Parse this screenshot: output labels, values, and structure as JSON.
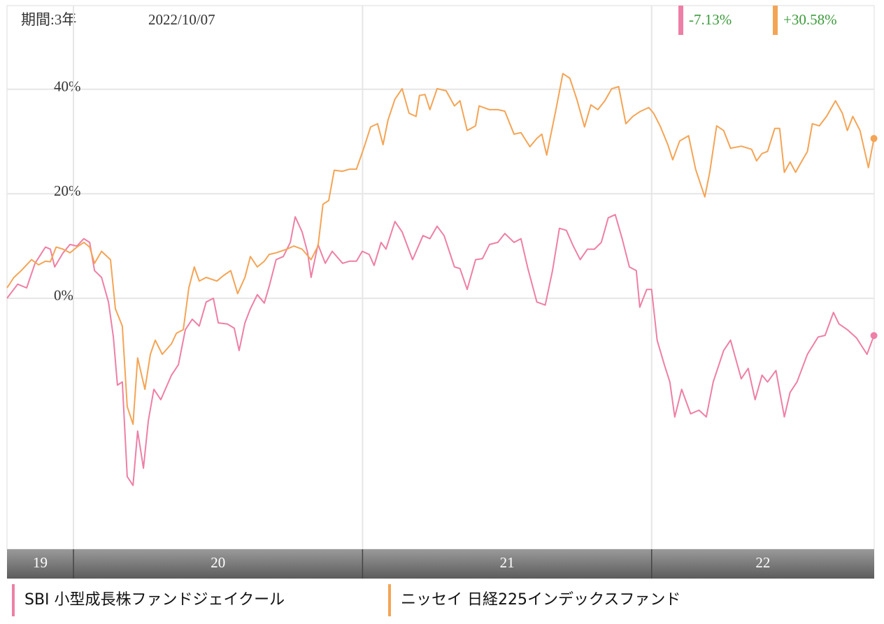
{
  "chart_data": {
    "type": "line",
    "period": "期間:3年",
    "date": "2022/10/07",
    "xlim": [
      2019.77,
      2022.77
    ],
    "xticks": [
      2020,
      2021,
      2022
    ],
    "year_labels": [
      "19",
      "20",
      "21",
      "22"
    ],
    "ylim": [
      -48,
      56
    ],
    "yticks": [
      {
        "value": 0,
        "label": "0%"
      },
      {
        "value": 20,
        "label": "20%"
      },
      {
        "value": 40,
        "label": "40%"
      }
    ],
    "grid": true,
    "series": [
      {
        "name": "SBI 小型成長株ファンドジェイクール",
        "color": "#ee7fa6",
        "last_label": "-7.13%",
        "x": [
          2019.77,
          2019.807,
          2019.838,
          2019.867,
          2019.903,
          2019.92,
          2019.935,
          2019.964,
          2019.988,
          2020.012,
          2020.036,
          2020.056,
          2020.073,
          2020.097,
          2020.121,
          2020.138,
          2020.152,
          2020.169,
          2020.186,
          2020.206,
          2020.222,
          2020.242,
          2020.259,
          2020.278,
          2020.302,
          2020.339,
          2020.363,
          2020.387,
          2020.411,
          2020.435,
          2020.459,
          2020.484,
          2020.501,
          2020.532,
          2020.556,
          2020.573,
          2020.593,
          2020.612,
          2020.636,
          2020.66,
          2020.677,
          2020.701,
          2020.726,
          2020.75,
          2020.767,
          2020.791,
          2020.81,
          2020.822,
          2020.846,
          2020.871,
          2020.895,
          2020.931,
          2020.955,
          2020.979,
          2020.999,
          2021.023,
          2021.04,
          2021.064,
          2021.081,
          2021.112,
          2021.137,
          2021.173,
          2021.209,
          2021.233,
          2021.258,
          2021.282,
          2021.318,
          2021.337,
          2021.362,
          2021.391,
          2021.415,
          2021.439,
          2021.468,
          2021.492,
          2021.524,
          2021.548,
          2021.572,
          2021.603,
          2021.632,
          2021.657,
          2021.681,
          2021.705,
          2021.729,
          2021.753,
          2021.778,
          2021.802,
          2021.826,
          2021.85,
          2021.874,
          2021.898,
          2021.923,
          2021.947,
          2021.959,
          2021.983,
          2022.0,
          2022.019,
          2022.044,
          2022.063,
          2022.08,
          2022.104,
          2022.135,
          2022.164,
          2022.189,
          2022.213,
          2022.249,
          2022.273,
          2022.31,
          2022.334,
          2022.358,
          2022.382,
          2022.401,
          2022.43,
          2022.459,
          2022.479,
          2022.503,
          2022.539,
          2022.576,
          2022.6,
          2022.629,
          2022.648,
          2022.677,
          2022.709,
          2022.745,
          2022.769
        ],
        "values": [
          0,
          2.7,
          2.0,
          6.7,
          9.8,
          9.4,
          6.0,
          8.7,
          10.3,
          10.0,
          11.4,
          10.7,
          5.3,
          4.0,
          -0.7,
          -7.4,
          -16.6,
          -16.0,
          -34.1,
          -35.8,
          -25.4,
          -32.5,
          -23.4,
          -17.4,
          -19.4,
          -14.7,
          -12.7,
          -6.0,
          -4.0,
          -5.3,
          -0.7,
          0,
          -4.7,
          -4.9,
          -5.7,
          -10.0,
          -4.7,
          -2.0,
          0.7,
          -0.9,
          2.3,
          7.4,
          8.0,
          10.7,
          15.6,
          12.7,
          8.7,
          4.0,
          10.3,
          6.7,
          9.0,
          6.7,
          7.1,
          7.1,
          9.0,
          8.4,
          6.3,
          10.7,
          9.4,
          14.7,
          12.7,
          7.4,
          12.0,
          11.4,
          13.8,
          12.0,
          6.0,
          5.7,
          1.7,
          7.4,
          7.6,
          10.3,
          10.7,
          12.4,
          10.7,
          11.4,
          5.7,
          -0.7,
          -1.3,
          5.3,
          13.4,
          13.0,
          10.0,
          7.4,
          9.4,
          9.4,
          10.7,
          15.4,
          16.0,
          11.4,
          6.0,
          5.3,
          -1.7,
          1.7,
          1.7,
          -8.0,
          -12.7,
          -16.0,
          -22.7,
          -17.4,
          -22.1,
          -21.4,
          -22.7,
          -16.0,
          -10.0,
          -8.0,
          -15.4,
          -13.4,
          -19.4,
          -14.7,
          -16.0,
          -13.8,
          -22.7,
          -18.0,
          -16.0,
          -10.7,
          -7.4,
          -7.1,
          -2.7,
          -4.9,
          -6.0,
          -7.6,
          -10.7,
          -7.13
        ]
      },
      {
        "name": "ニッセイ 日経225インデックスファンド",
        "color": "#f4a455",
        "last_label": "+30.58%",
        "x": [
          2019.77,
          2019.794,
          2019.819,
          2019.855,
          2019.879,
          2019.903,
          2019.92,
          2019.94,
          2019.964,
          2019.988,
          2020.012,
          2020.036,
          2020.056,
          2020.073,
          2020.097,
          2020.128,
          2020.145,
          2020.169,
          2020.186,
          2020.206,
          2020.222,
          2020.247,
          2020.266,
          2020.283,
          2020.307,
          2020.339,
          2020.356,
          2020.38,
          2020.399,
          2020.418,
          2020.435,
          2020.459,
          2020.496,
          2020.52,
          2020.544,
          2020.568,
          2020.593,
          2020.612,
          2020.636,
          2020.66,
          2020.677,
          2020.701,
          2020.738,
          2020.762,
          2020.791,
          2020.822,
          2020.846,
          2020.863,
          2020.883,
          2020.902,
          2020.931,
          2020.955,
          2020.979,
          2021.004,
          2021.028,
          2021.052,
          2021.071,
          2021.088,
          2021.112,
          2021.137,
          2021.161,
          2021.185,
          2021.197,
          2021.216,
          2021.233,
          2021.258,
          2021.289,
          2021.318,
          2021.337,
          2021.362,
          2021.391,
          2021.403,
          2021.439,
          2021.468,
          2021.492,
          2021.524,
          2021.548,
          2021.579,
          2021.603,
          2021.62,
          2021.637,
          2021.669,
          2021.693,
          2021.717,
          2021.741,
          2021.768,
          2021.79,
          2021.814,
          2021.838,
          2021.862,
          2021.886,
          2021.911,
          2021.935,
          2021.959,
          2021.99,
          2022.007,
          2022.031,
          2022.056,
          2022.073,
          2022.097,
          2022.128,
          2022.152,
          2022.184,
          2022.201,
          2022.225,
          2022.249,
          2022.273,
          2022.31,
          2022.334,
          2022.346,
          2022.363,
          2022.382,
          2022.401,
          2022.426,
          2022.443,
          2022.459,
          2022.479,
          2022.498,
          2022.515,
          2022.539,
          2022.556,
          2022.58,
          2022.605,
          2022.636,
          2022.66,
          2022.677,
          2022.696,
          2022.721,
          2022.75,
          2022.769
        ],
        "values": [
          2.0,
          4.0,
          5.3,
          7.4,
          6.4,
          7.1,
          7.0,
          9.8,
          9.4,
          8.7,
          9.8,
          10.7,
          9.8,
          6.7,
          9.0,
          7.4,
          -2.0,
          -5.3,
          -20.7,
          -24.1,
          -11.4,
          -17.4,
          -10.7,
          -8.0,
          -10.7,
          -8.7,
          -6.7,
          -6.0,
          2.0,
          6.0,
          3.3,
          4.0,
          3.3,
          4.4,
          5.3,
          0.9,
          4.0,
          8.0,
          6.0,
          7.1,
          8.4,
          8.7,
          9.4,
          10.0,
          9.4,
          7.4,
          10.0,
          18.0,
          18.7,
          24.5,
          24.3,
          24.7,
          24.7,
          28.7,
          32.8,
          33.4,
          29.4,
          34.1,
          38.1,
          40.1,
          35.4,
          34.8,
          38.8,
          39.0,
          36.1,
          40.1,
          39.7,
          36.8,
          37.8,
          32.1,
          33.0,
          36.8,
          36.1,
          36.1,
          35.8,
          31.4,
          31.7,
          29.0,
          30.6,
          31.4,
          27.4,
          36.1,
          43.0,
          42.1,
          38.1,
          32.8,
          37.0,
          36.1,
          37.8,
          40.1,
          40.5,
          33.4,
          34.8,
          35.7,
          36.5,
          35.4,
          32.8,
          29.4,
          26.5,
          30.1,
          31.1,
          24.7,
          19.4,
          24.1,
          33.0,
          32.1,
          28.7,
          29.1,
          28.7,
          28.5,
          26.3,
          27.7,
          28.1,
          32.5,
          32.5,
          24.1,
          26.1,
          24.1,
          25.8,
          28.1,
          33.4,
          33.0,
          34.8,
          37.8,
          35.4,
          32.1,
          34.8,
          32.1,
          25.0,
          30.58
        ]
      }
    ]
  }
}
